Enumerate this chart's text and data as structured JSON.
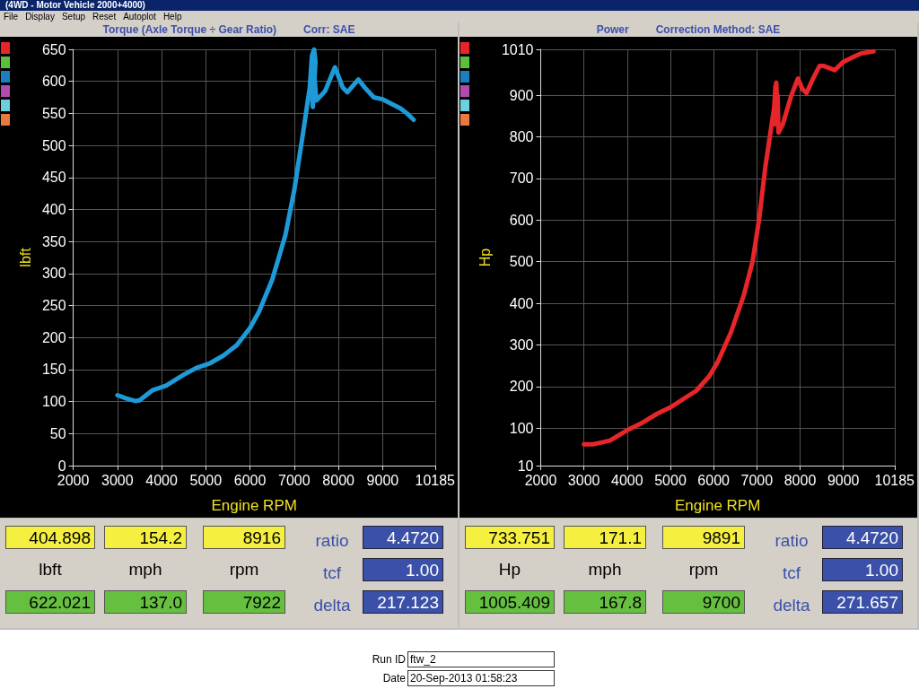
{
  "chart_data": [
    {
      "type": "other",
      "title": "(4WD - Motor Vehicle 2000+4000)",
      "annotations": [
        "File",
        "Display",
        "Setup",
        "Reset",
        "Autoplot",
        "Help"
      ]
    },
    {
      "type": "line",
      "title": "Torque (Axle Torque ÷ Gear Ratio)",
      "subtitle": "Corr: SAE",
      "xlabel": "Engine RPM",
      "ylabel": "lbft",
      "xlim": [
        2000,
        10185
      ],
      "xticks": [
        2000,
        3000,
        4000,
        5000,
        6000,
        7000,
        8000,
        9000,
        10185
      ],
      "ylim": [
        0,
        650
      ],
      "yticks": [
        0,
        50,
        100,
        150,
        200,
        250,
        300,
        350,
        400,
        450,
        500,
        550,
        600,
        650
      ],
      "grid": true,
      "series": [
        {
          "color": "#1e9ad8",
          "x": [
            3000,
            3200,
            3400,
            3500,
            3800,
            4100,
            4500,
            4800,
            5100,
            5400,
            5700,
            6000,
            6200,
            6500,
            6800,
            7000,
            7200,
            7350,
            7400,
            7450,
            7480,
            7420,
            7380,
            7420,
            7500,
            7700,
            7920,
            8100,
            8200,
            8450,
            8600,
            8800,
            9000,
            9200,
            9400,
            9550,
            9700
          ],
          "values": [
            110,
            105,
            101,
            102,
            118,
            125,
            142,
            153,
            160,
            172,
            188,
            215,
            240,
            290,
            360,
            430,
            520,
            590,
            640,
            650,
            630,
            560,
            620,
            640,
            570,
            585,
            622,
            590,
            583,
            603,
            590,
            575,
            572,
            565,
            558,
            550,
            540
          ]
        }
      ]
    },
    {
      "type": "line",
      "title": "Power",
      "subtitle": "Correction Method: SAE",
      "xlabel": "Engine RPM",
      "ylabel": "Hp",
      "xlim": [
        2000,
        10185
      ],
      "xticks": [
        2000,
        3000,
        4000,
        5000,
        6000,
        7000,
        8000,
        9000,
        10185
      ],
      "ylim": [
        10,
        1010
      ],
      "yticks": [
        10,
        100,
        200,
        300,
        400,
        500,
        600,
        700,
        800,
        900,
        1010
      ],
      "grid": true,
      "series": [
        {
          "color": "#e8262a",
          "x": [
            3000,
            3200,
            3600,
            4000,
            4300,
            4700,
            5000,
            5300,
            5600,
            5900,
            6100,
            6400,
            6700,
            6900,
            7050,
            7200,
            7300,
            7400,
            7430,
            7450,
            7470,
            7420,
            7480,
            7500,
            7600,
            7800,
            7950,
            8050,
            8150,
            8300,
            8450,
            8550,
            8800,
            9000,
            9200,
            9400,
            9700
          ],
          "values": [
            61,
            61,
            70,
            95,
            110,
            135,
            150,
            170,
            190,
            225,
            260,
            330,
            420,
            500,
            600,
            730,
            800,
            870,
            920,
            930,
            850,
            830,
            900,
            810,
            830,
            900,
            940,
            915,
            905,
            940,
            970,
            970,
            960,
            980,
            990,
            1000,
            1005
          ]
        }
      ]
    },
    {
      "type": "other",
      "annotations": [
        "404.898",
        "154.2",
        "8916",
        "ratio",
        "4.4720",
        "lbft",
        "mph",
        "rpm",
        "tcf",
        "1.00",
        "622.021",
        "137.0",
        "7922",
        "delta",
        "217.123"
      ]
    },
    {
      "type": "other",
      "annotations": [
        "733.751",
        "171.1",
        "9891",
        "ratio",
        "4.4720",
        "Hp",
        "mph",
        "rpm",
        "tcf",
        "1.00",
        "1005.409",
        "167.8",
        "9700",
        "delta",
        "271.657"
      ]
    },
    {
      "type": "other",
      "annotations": [
        "Run ID",
        "ftw_2",
        "Date",
        "20-Sep-2013 01:58:23"
      ]
    }
  ]
}
